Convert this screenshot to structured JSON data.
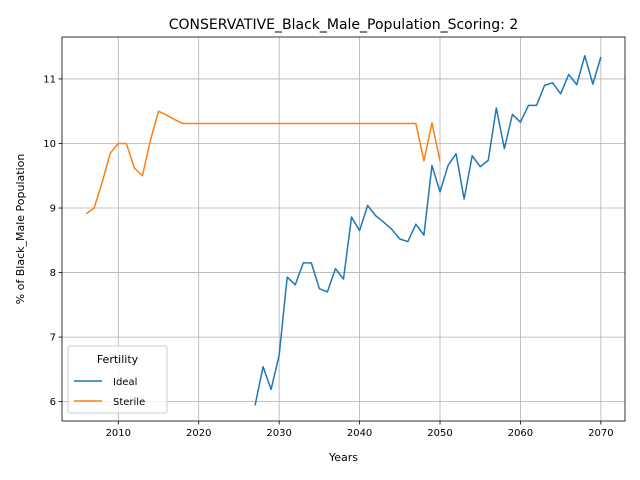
{
  "chart_data": {
    "type": "line",
    "title": "CONSERVATIVE_Black_Male_Population_Scoring: 2",
    "xlabel": "Years",
    "ylabel": "% of Black_Male Population",
    "xlim": [
      2003,
      2073
    ],
    "ylim": [
      5.7,
      11.65
    ],
    "xticks": [
      2010,
      2020,
      2030,
      2040,
      2050,
      2060,
      2070
    ],
    "yticks": [
      6,
      7,
      8,
      9,
      10,
      11
    ],
    "grid": true,
    "legend": {
      "title": "Fertility",
      "placement": "lower-left"
    },
    "series": [
      {
        "name": "Ideal",
        "color": "#1f77b4",
        "x": [
          2027,
          2028,
          2029,
          2030,
          2031,
          2032,
          2033,
          2034,
          2035,
          2036,
          2037,
          2038,
          2039,
          2040,
          2041,
          2042,
          2043,
          2044,
          2045,
          2046,
          2047,
          2048,
          2049,
          2050,
          2051,
          2052,
          2053,
          2054,
          2055,
          2056,
          2057,
          2058,
          2059,
          2060,
          2061,
          2062,
          2063,
          2064,
          2065,
          2066,
          2067,
          2068,
          2069,
          2070
        ],
        "values": [
          5.94,
          6.54,
          6.19,
          6.72,
          7.93,
          7.81,
          8.15,
          8.15,
          7.75,
          7.7,
          8.06,
          7.9,
          8.86,
          8.65,
          9.04,
          8.88,
          8.78,
          8.67,
          8.52,
          8.48,
          8.75,
          8.58,
          9.66,
          9.25,
          9.66,
          9.84,
          9.14,
          9.81,
          9.64,
          9.74,
          10.55,
          9.92,
          10.45,
          10.33,
          10.59,
          10.59,
          10.9,
          10.94,
          10.77,
          11.07,
          10.91,
          11.36,
          10.92,
          11.34
        ]
      },
      {
        "name": "Sterile",
        "color": "#ff7f0e",
        "x": [
          2006,
          2007,
          2008,
          2009,
          2010,
          2011,
          2012,
          2013,
          2014,
          2015,
          2016,
          2017,
          2018,
          2019,
          2020,
          2025,
          2030,
          2035,
          2040,
          2045,
          2047,
          2048,
          2049,
          2050
        ],
        "values": [
          8.91,
          9.0,
          9.4,
          9.85,
          10.0,
          10.0,
          9.62,
          9.5,
          10.05,
          10.5,
          10.44,
          10.37,
          10.31,
          10.31,
          10.31,
          10.31,
          10.31,
          10.31,
          10.31,
          10.31,
          10.31,
          9.73,
          10.32,
          9.73
        ]
      }
    ]
  }
}
